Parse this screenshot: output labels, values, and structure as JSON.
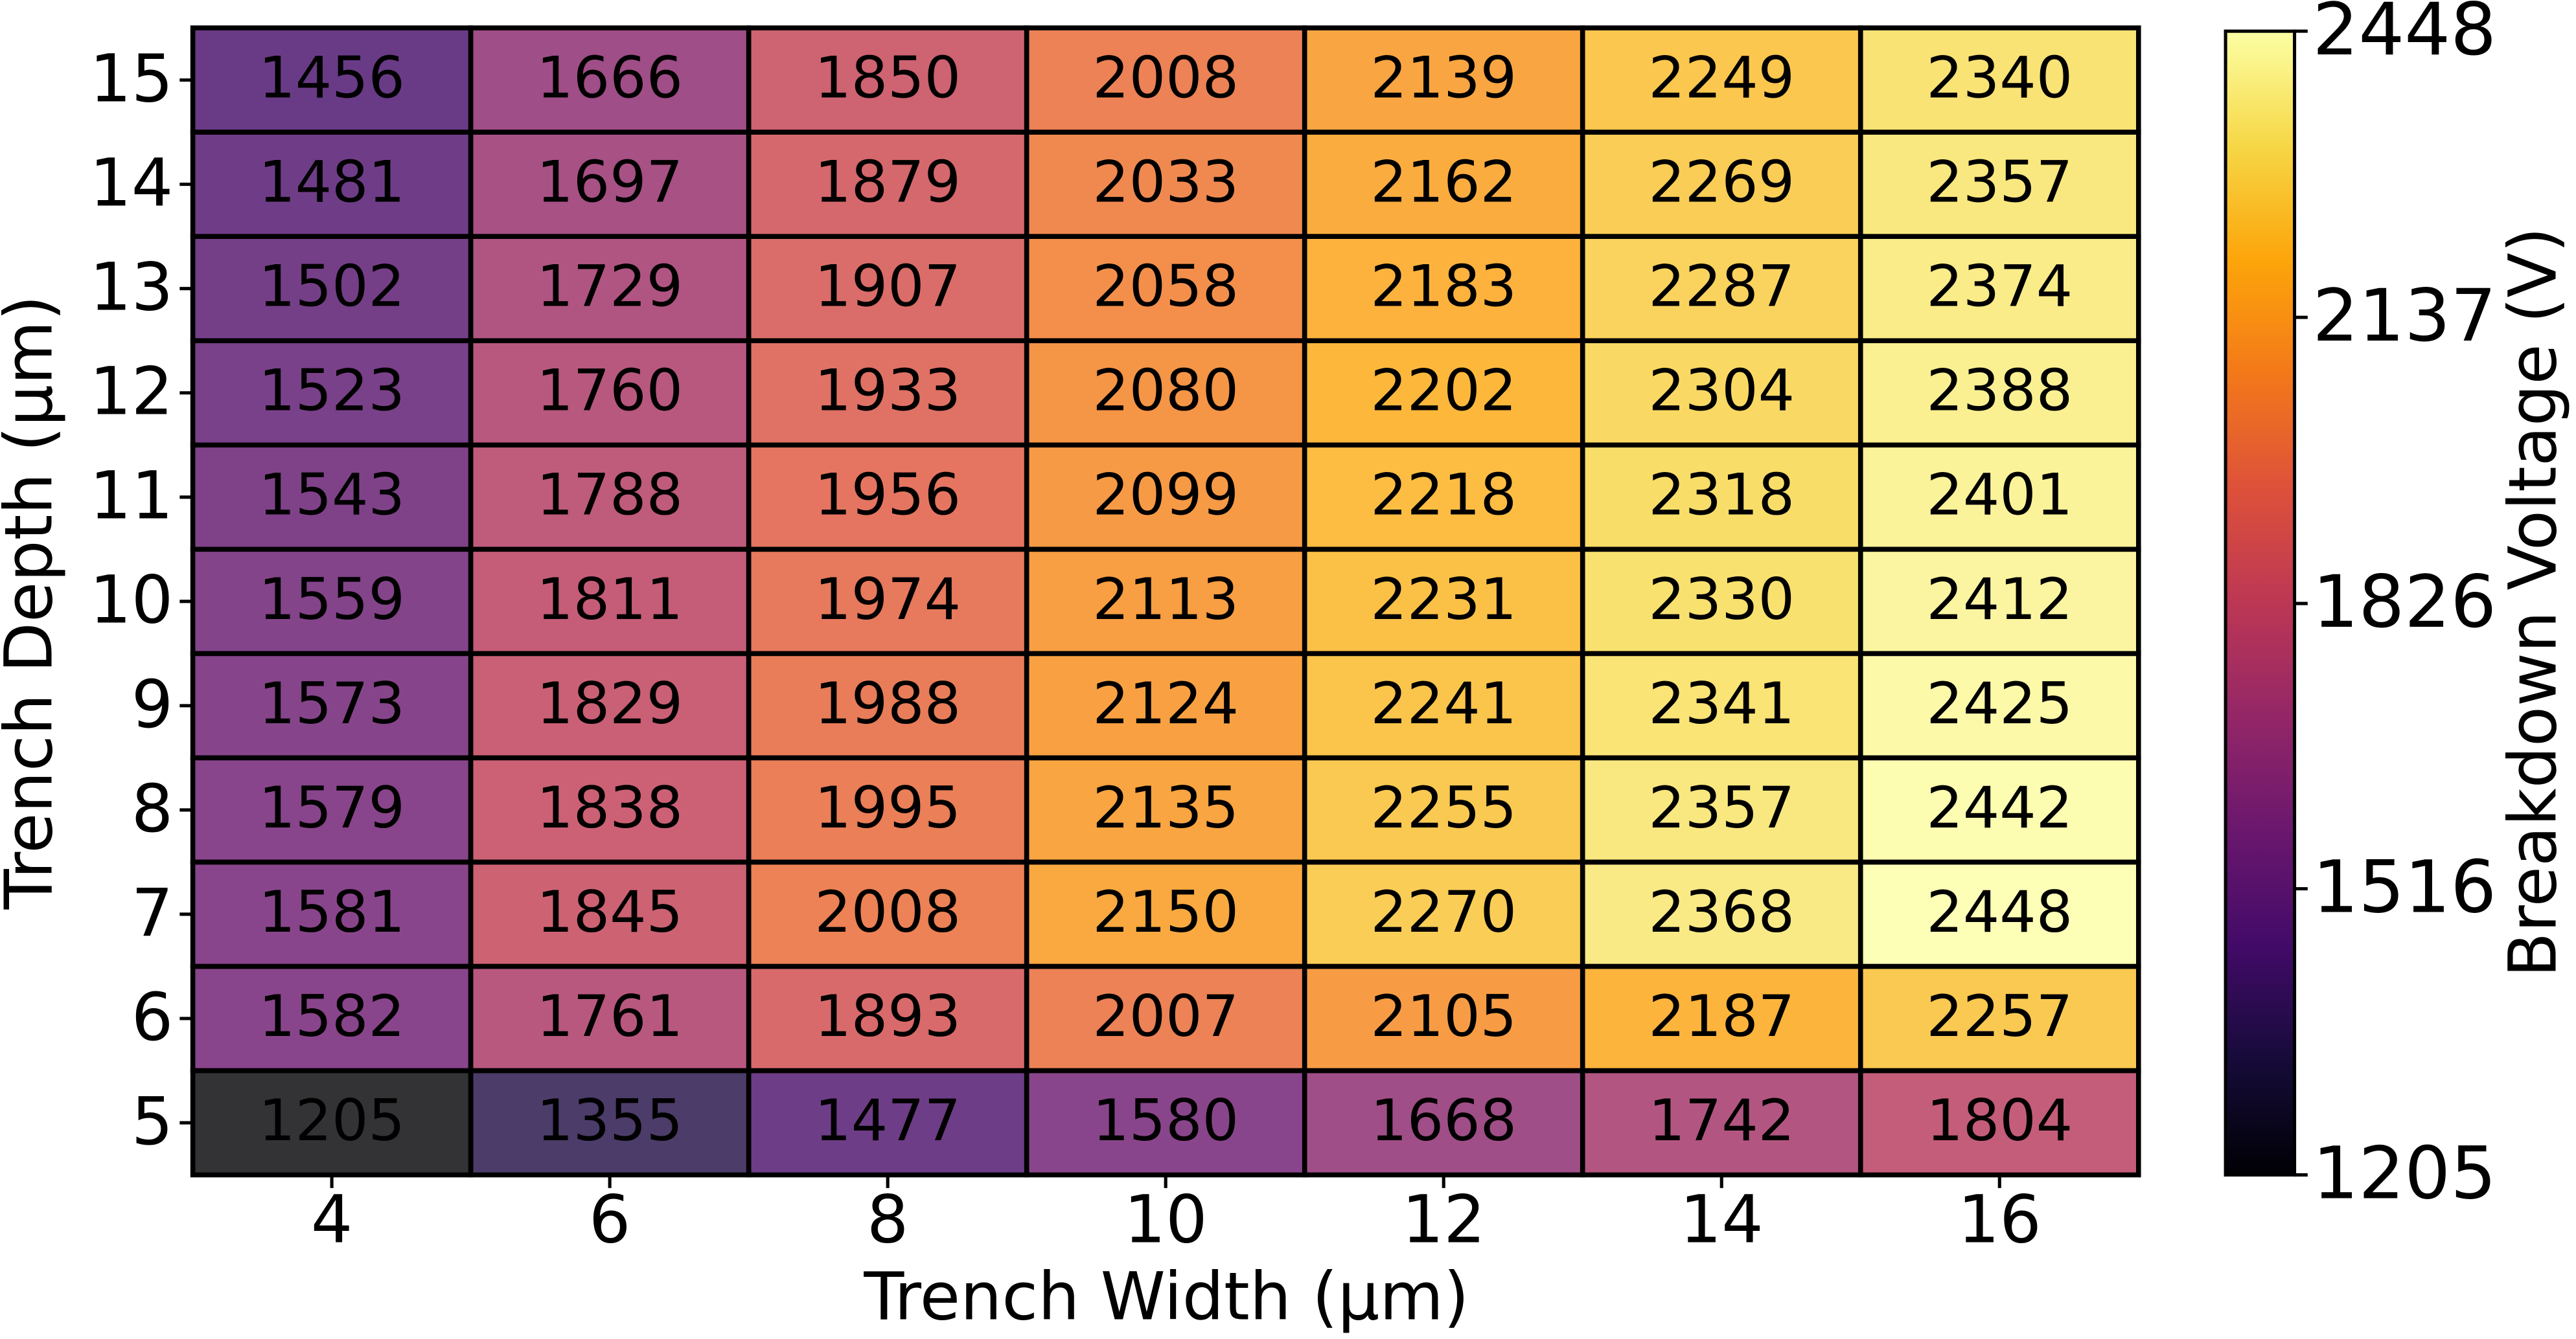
{
  "chart_data": {
    "type": "heatmap",
    "x_label": "Trench Width (µm)",
    "y_label": "Trench Depth (µm)",
    "colorbar_label": "Breakdown Voltage (V)",
    "x": [
      4,
      6,
      8,
      10,
      12,
      14,
      16
    ],
    "y": [
      5,
      6,
      7,
      8,
      9,
      10,
      11,
      12,
      13,
      14,
      15
    ],
    "values": [
      [
        1205,
        1355,
        1477,
        1580,
        1668,
        1742,
        1804
      ],
      [
        1582,
        1761,
        1893,
        2007,
        2105,
        2187,
        2257
      ],
      [
        1581,
        1845,
        2008,
        2150,
        2270,
        2368,
        2448
      ],
      [
        1579,
        1838,
        1995,
        2135,
        2255,
        2357,
        2442
      ],
      [
        1573,
        1829,
        1988,
        2124,
        2241,
        2341,
        2425
      ],
      [
        1559,
        1811,
        1974,
        2113,
        2231,
        2330,
        2412
      ],
      [
        1543,
        1788,
        1956,
        2099,
        2218,
        2318,
        2401
      ],
      [
        1523,
        1760,
        1933,
        2080,
        2202,
        2304,
        2388
      ],
      [
        1502,
        1729,
        1907,
        2058,
        2183,
        2287,
        2374
      ],
      [
        1481,
        1697,
        1879,
        2033,
        2162,
        2269,
        2357
      ],
      [
        1456,
        1666,
        1850,
        2008,
        2139,
        2249,
        2340
      ]
    ],
    "colormap": "inferno",
    "alpha": 0.8,
    "clim": [
      1205,
      2448
    ],
    "cticks": [
      1205,
      1516,
      1826,
      2137,
      2448
    ]
  }
}
